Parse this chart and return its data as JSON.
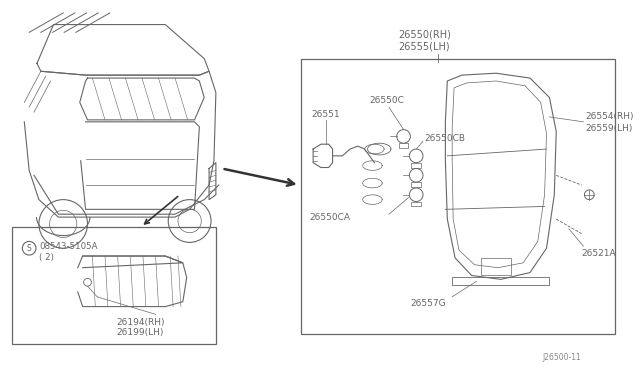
{
  "bg_color": "#ffffff",
  "line_color": "#666666",
  "text_color": "#666666",
  "diagram_ref": "J26500-11",
  "parts": {
    "main_assembly": "26550（RH）\n26555（LH）",
    "main_assembly2": "26550(RH)\n26555(LH)",
    "socket_harness": "26551",
    "bulb_c": "26550C",
    "bulb_cb": "26550CB",
    "bulb_ca": "26550CA",
    "gasket": "26557G",
    "lens_rh": "26554(RH)\n26559(LH)",
    "bracket": "26521A",
    "license_rh": "26194(RH)\n26199(LH)",
    "screw_label": "08543-5105A\n( 2)"
  },
  "fig_width": 6.4,
  "fig_height": 3.72,
  "dpi": 100
}
